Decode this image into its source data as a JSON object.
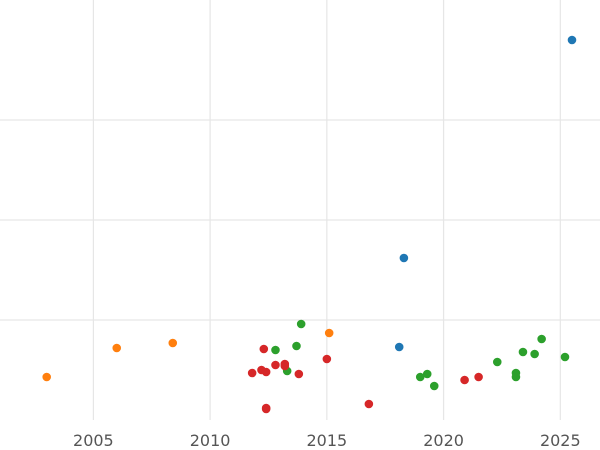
{
  "chart_data": {
    "type": "scatter",
    "title": "",
    "xlabel": "",
    "ylabel": "",
    "xlim": [
      2001,
      2026.7
    ],
    "ylim": [
      0,
      4.2
    ],
    "x_ticks": [
      2005,
      2010,
      2015,
      2020,
      2025
    ],
    "x_tick_labels": [
      "2005",
      "2010",
      "2015",
      "2020",
      "2025"
    ],
    "y_gridlines": [
      1,
      2,
      3
    ],
    "grid": {
      "x": true,
      "y": true
    },
    "legend": "none",
    "series": [
      {
        "color": "#1f77b4",
        "points": [
          [
            2025.5,
            3.8
          ],
          [
            2018.3,
            1.62
          ],
          [
            2018.1,
            0.73
          ]
        ]
      },
      {
        "color": "#ff7f0e",
        "points": [
          [
            2003.0,
            0.43
          ],
          [
            2006.0,
            0.72
          ],
          [
            2008.4,
            0.77
          ],
          [
            2015.1,
            0.87
          ]
        ]
      },
      {
        "color": "#2ca02c",
        "points": [
          [
            2013.9,
            0.96
          ],
          [
            2013.7,
            0.74
          ],
          [
            2012.8,
            0.7
          ],
          [
            2013.3,
            0.49
          ],
          [
            2019.0,
            0.43
          ],
          [
            2019.3,
            0.46
          ],
          [
            2019.6,
            0.34
          ],
          [
            2022.3,
            0.58
          ],
          [
            2023.1,
            0.47
          ],
          [
            2023.1,
            0.43
          ],
          [
            2023.4,
            0.68
          ],
          [
            2023.9,
            0.66
          ],
          [
            2024.2,
            0.81
          ],
          [
            2025.2,
            0.63
          ]
        ]
      },
      {
        "color": "#d62728",
        "points": [
          [
            2012.3,
            0.71
          ],
          [
            2015.0,
            0.61
          ],
          [
            2012.2,
            0.5
          ],
          [
            2012.4,
            0.48
          ],
          [
            2011.8,
            0.47
          ],
          [
            2012.8,
            0.55
          ],
          [
            2013.2,
            0.56
          ],
          [
            2013.2,
            0.54
          ],
          [
            2013.8,
            0.46
          ],
          [
            2012.4,
            0.12
          ],
          [
            2012.4,
            0.11
          ],
          [
            2016.8,
            0.16
          ],
          [
            2020.9,
            0.4
          ],
          [
            2021.5,
            0.43
          ]
        ]
      }
    ]
  }
}
